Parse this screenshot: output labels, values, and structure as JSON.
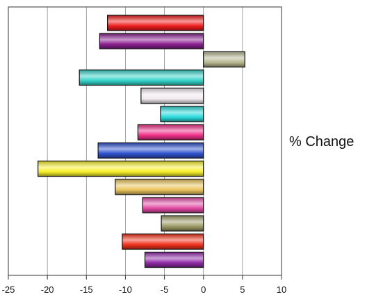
{
  "chart_data": {
    "type": "bar",
    "orientation": "horizontal",
    "xlabel": "% Change",
    "xlim": [
      -25,
      10
    ],
    "xticks": [
      -25,
      -20,
      -15,
      -10,
      -5,
      0,
      5,
      10
    ],
    "xtick_labels": [
      "-25",
      "-20",
      "-15",
      "-10",
      "-5",
      "0",
      "5",
      "10"
    ],
    "grid": "vertical",
    "values": [
      -12.3,
      -13.3,
      5.3,
      -15.9,
      -8.0,
      -5.5,
      -8.4,
      -13.5,
      -21.2,
      -11.3,
      -7.8,
      -5.4,
      -10.4,
      -7.5
    ],
    "colors": [
      "#ee1c1c",
      "#8a1f8f",
      "#b8b892",
      "#35d3c9",
      "#f2eaf0",
      "#29dada",
      "#ee2f86",
      "#2f52cf",
      "#f7f02a",
      "#e9c25a",
      "#e34aa4",
      "#9c9a66",
      "#f2321c",
      "#8f2aa6"
    ]
  }
}
